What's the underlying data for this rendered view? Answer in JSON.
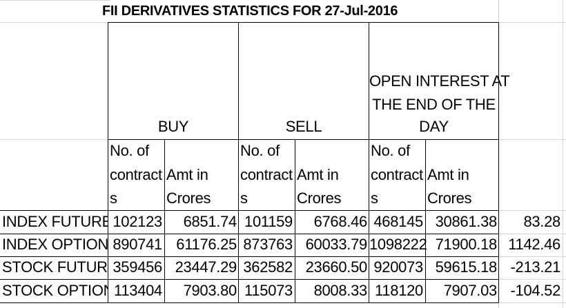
{
  "sheet": {
    "title": "FII DERIVATIVES STATISTICS FOR 27-Jul-2016",
    "group_headers": {
      "buy": "BUY",
      "sell": "SELL",
      "oi_line1": "OPEN INTEREST AT",
      "oi_line2": "THE END OF THE",
      "oi_line3": "DAY"
    },
    "sub_headers": {
      "contracts_line1": "No. of",
      "contracts_line2": "contract",
      "contracts_line3": "s",
      "amt_line1": "Amt in",
      "amt_line2": "Crores"
    },
    "rows": [
      {
        "label": "INDEX FUTURES",
        "buy_contracts": "102123",
        "buy_amt": "6851.74",
        "sell_contracts": "101159",
        "sell_amt": "6768.46",
        "oi_contracts": "468145",
        "oi_amt": "30861.38",
        "net": "83.28"
      },
      {
        "label": "INDEX OPTIONS",
        "buy_contracts": "890741",
        "buy_amt": "61176.25",
        "sell_contracts": "873763",
        "sell_amt": "60033.79",
        "oi_contracts": "1098222",
        "oi_amt": "71900.18",
        "net": "1142.46"
      },
      {
        "label": "STOCK FUTURES",
        "buy_contracts": "359456",
        "buy_amt": "23447.29",
        "sell_contracts": "362582",
        "sell_amt": "23660.50",
        "oi_contracts": "920073",
        "oi_amt": "59615.18",
        "net": "-213.21"
      },
      {
        "label": "STOCK OPTIONS",
        "buy_contracts": "113404",
        "buy_amt": "7903.80",
        "sell_contracts": "115073",
        "sell_amt": "8008.33",
        "oi_contracts": "118120",
        "oi_amt": "7907.03",
        "net": "-104.52"
      }
    ]
  }
}
